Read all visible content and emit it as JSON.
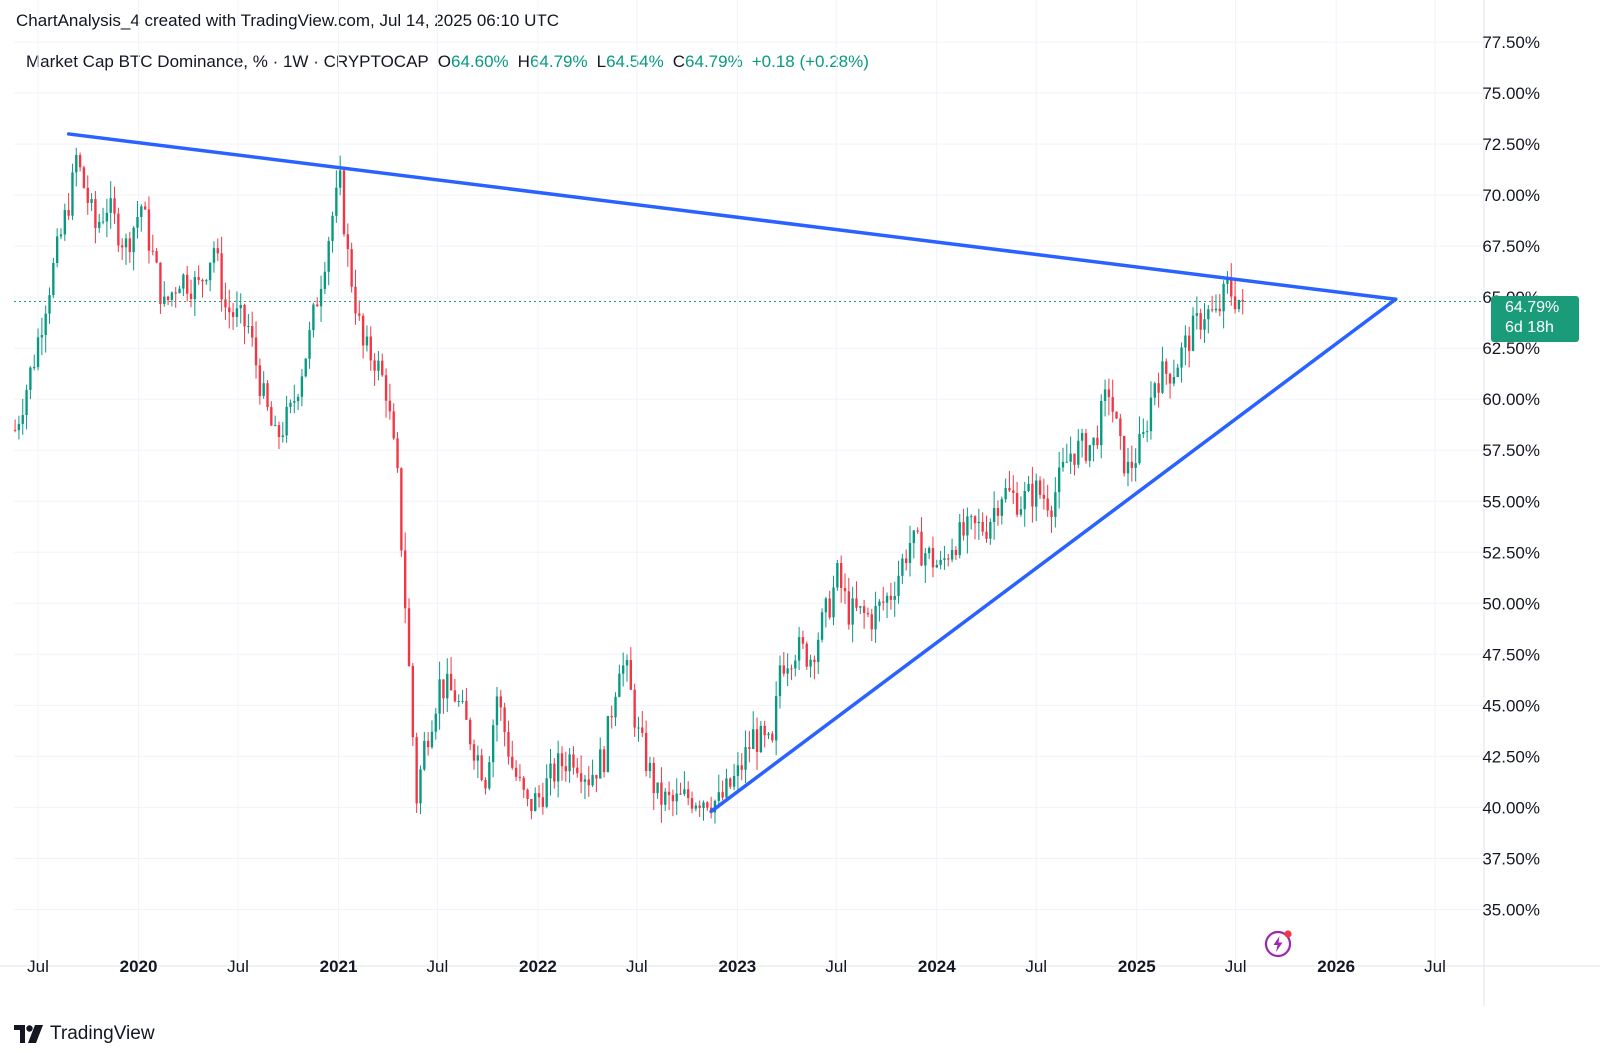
{
  "header": {
    "attribution": "ChartAnalysis_4 created with TradingView.com, Jul 14, 2025 06:10 UTC",
    "symbol": "Market Cap BTC Dominance, % · 1W · CRYPTOCAP",
    "o_label": "O",
    "o_value": "64.60%",
    "h_label": "H",
    "h_value": "64.79%",
    "l_label": "L",
    "l_value": "64.54%",
    "c_label": "C",
    "c_value": "64.79%",
    "change": "+0.18 (+0.28%)"
  },
  "last_price": {
    "value": "64.79%",
    "countdown": "6d 18h"
  },
  "brand": {
    "name": "TradingView"
  },
  "icons": {
    "logo": "tradingview-logo-icon",
    "flash": "lightning-icon"
  },
  "colors": {
    "up": "#089981",
    "down": "#f23645",
    "trendline": "#2962ff",
    "price_tag": "#1a9b79",
    "grid": "#f0f3fa"
  },
  "chart_data": {
    "type": "candlestick",
    "interval": "1W",
    "y_axis": {
      "unit": "%",
      "ylim": [
        33.5,
        77.8
      ],
      "tick_values": [
        35,
        37.5,
        40,
        42.5,
        45,
        47.5,
        50,
        52.5,
        55,
        57.5,
        60,
        62.5,
        65,
        67.5,
        70,
        72.5,
        75,
        77.5
      ],
      "tick_labels": [
        "35.00%",
        "37.50%",
        "40.00%",
        "42.50%",
        "45.00%",
        "47.50%",
        "50.00%",
        "52.50%",
        "55.00%",
        "57.50%",
        "60.00%",
        "62.50%",
        "65.00%",
        "67.50%",
        "70.00%",
        "72.50%",
        "75.00%",
        "77.50%"
      ]
    },
    "x_axis": {
      "xlim": [
        "2019-05-18",
        "2026-08-12"
      ],
      "ticks": [
        {
          "date": "2019-07-01",
          "label": "Jul",
          "bold": false
        },
        {
          "date": "2020-01-01",
          "label": "2020",
          "bold": true
        },
        {
          "date": "2020-07-01",
          "label": "Jul",
          "bold": false
        },
        {
          "date": "2021-01-01",
          "label": "2021",
          "bold": true
        },
        {
          "date": "2021-07-01",
          "label": "Jul",
          "bold": false
        },
        {
          "date": "2022-01-01",
          "label": "2022",
          "bold": true
        },
        {
          "date": "2022-07-01",
          "label": "Jul",
          "bold": false
        },
        {
          "date": "2023-01-01",
          "label": "2023",
          "bold": true
        },
        {
          "date": "2023-07-01",
          "label": "Jul",
          "bold": false
        },
        {
          "date": "2024-01-01",
          "label": "2024",
          "bold": true
        },
        {
          "date": "2024-07-01",
          "label": "Jul",
          "bold": false
        },
        {
          "date": "2025-01-01",
          "label": "2025",
          "bold": true
        },
        {
          "date": "2025-07-01",
          "label": "Jul",
          "bold": false
        },
        {
          "date": "2026-01-01",
          "label": "2026",
          "bold": true
        },
        {
          "date": "2026-07-01",
          "label": "Jul",
          "bold": false
        }
      ]
    },
    "price_path": [
      [
        "2019-05-20",
        58.5
      ],
      [
        "2019-06-24",
        62
      ],
      [
        "2019-07-15",
        64.8
      ],
      [
        "2019-08-12",
        68
      ],
      [
        "2019-09-02",
        70.5
      ],
      [
        "2019-09-09",
        71.8
      ],
      [
        "2019-10-14",
        68.4
      ],
      [
        "2019-11-04",
        69.5
      ],
      [
        "2019-12-09",
        67.5
      ],
      [
        "2020-01-06",
        69.5
      ],
      [
        "2020-02-17",
        64.5
      ],
      [
        "2020-03-16",
        66
      ],
      [
        "2020-04-20",
        65.5
      ],
      [
        "2020-05-18",
        67.5
      ],
      [
        "2020-06-08",
        64.5
      ],
      [
        "2020-07-20",
        63.5
      ],
      [
        "2020-08-17",
        60
      ],
      [
        "2020-09-07",
        58
      ],
      [
        "2020-10-05",
        59.3
      ],
      [
        "2020-11-09",
        63
      ],
      [
        "2020-12-21",
        69
      ],
      [
        "2021-01-04",
        70.5
      ],
      [
        "2021-01-18",
        67
      ],
      [
        "2021-02-15",
        62.5
      ],
      [
        "2021-03-08",
        62
      ],
      [
        "2021-03-29",
        60.5
      ],
      [
        "2021-04-19",
        56
      ],
      [
        "2021-05-03",
        50
      ],
      [
        "2021-05-17",
        43.5
      ],
      [
        "2021-05-24",
        40.5
      ],
      [
        "2021-06-07",
        43
      ],
      [
        "2021-07-05",
        46
      ],
      [
        "2021-08-02",
        45.5
      ],
      [
        "2021-09-06",
        43
      ],
      [
        "2021-09-27",
        41.5
      ],
      [
        "2021-10-18",
        45.5
      ],
      [
        "2021-11-15",
        42
      ],
      [
        "2021-12-13",
        40
      ],
      [
        "2022-01-03",
        40.5
      ],
      [
        "2022-02-07",
        42
      ],
      [
        "2022-03-07",
        42.6
      ],
      [
        "2022-04-04",
        41.5
      ],
      [
        "2022-05-02",
        42.5
      ],
      [
        "2022-05-30",
        47.2
      ],
      [
        "2022-06-13",
        46.5
      ],
      [
        "2022-07-04",
        43.5
      ],
      [
        "2022-08-08",
        40.5
      ],
      [
        "2022-09-05",
        40.2
      ],
      [
        "2022-10-03",
        40.5
      ],
      [
        "2022-11-07",
        40.5
      ],
      [
        "2022-11-28",
        40.2
      ],
      [
        "2023-01-02",
        41.6
      ],
      [
        "2023-01-30",
        43.5
      ],
      [
        "2023-03-06",
        42.8
      ],
      [
        "2023-03-20",
        47
      ],
      [
        "2023-04-17",
        47.8
      ],
      [
        "2023-05-15",
        47.4
      ],
      [
        "2023-06-19",
        50
      ],
      [
        "2023-07-03",
        51.3
      ],
      [
        "2023-07-24",
        49.6
      ],
      [
        "2023-09-04",
        49.3
      ],
      [
        "2023-10-09",
        50.5
      ],
      [
        "2023-11-13",
        53
      ],
      [
        "2023-12-11",
        52.5
      ],
      [
        "2024-01-08",
        51.7
      ],
      [
        "2024-01-29",
        53
      ],
      [
        "2024-03-04",
        53.6
      ],
      [
        "2024-04-01",
        53.8
      ],
      [
        "2024-04-29",
        55.5
      ],
      [
        "2024-06-03",
        55
      ],
      [
        "2024-07-01",
        55.5
      ],
      [
        "2024-07-29",
        55
      ],
      [
        "2024-09-02",
        57.4
      ],
      [
        "2024-10-14",
        57.8
      ],
      [
        "2024-11-11",
        60.5
      ],
      [
        "2024-12-02",
        57.5
      ],
      [
        "2024-12-16",
        56.5
      ],
      [
        "2025-01-13",
        58
      ],
      [
        "2025-02-03",
        61
      ],
      [
        "2025-03-10",
        61.5
      ],
      [
        "2025-04-07",
        63
      ],
      [
        "2025-05-05",
        64.3
      ],
      [
        "2025-05-26",
        64
      ],
      [
        "2025-06-16",
        65.5
      ],
      [
        "2025-06-30",
        65
      ],
      [
        "2025-07-14",
        64.79
      ]
    ],
    "last_close": 64.79,
    "trendlines": [
      {
        "name": "resistance",
        "from": [
          "2019-08-26",
          73.0
        ],
        "to": [
          "2026-04-20",
          64.9
        ]
      },
      {
        "name": "support",
        "from": [
          "2022-11-14",
          39.8
        ],
        "to": [
          "2026-04-20",
          64.9
        ]
      }
    ]
  }
}
